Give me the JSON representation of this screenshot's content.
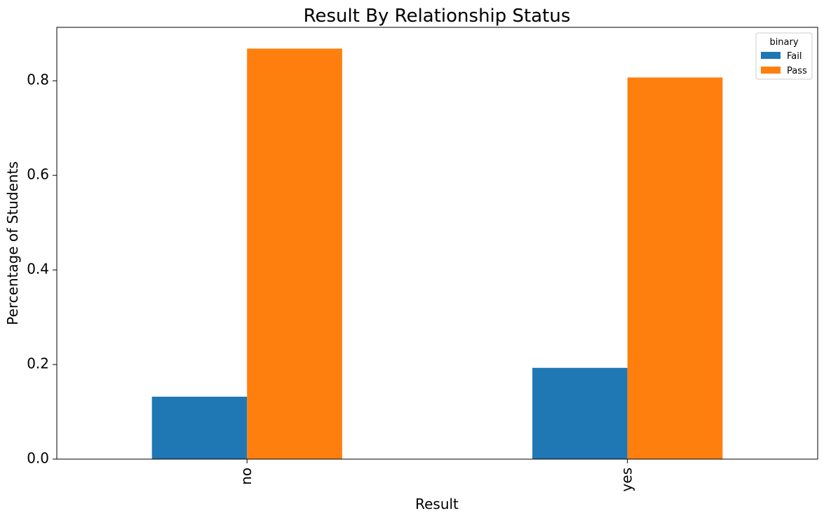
{
  "chart_data": {
    "type": "bar",
    "title": "Result By Relationship Status",
    "xlabel": "Result",
    "ylabel": "Percentage of Students",
    "categories": [
      "no",
      "yes"
    ],
    "series": [
      {
        "name": "Fail",
        "values": [
          0.132,
          0.193
        ],
        "color": "#1f77b4"
      },
      {
        "name": "Pass",
        "values": [
          0.868,
          0.807
        ],
        "color": "#ff7f0e"
      }
    ],
    "ylim": [
      0,
      0.913
    ],
    "yticks": [
      0.0,
      0.2,
      0.4,
      0.6,
      0.8
    ],
    "ytick_labels": [
      "0.0",
      "0.2",
      "0.4",
      "0.6",
      "0.8"
    ],
    "grid": false,
    "legend": {
      "title": "binary",
      "position": "top-right"
    }
  }
}
